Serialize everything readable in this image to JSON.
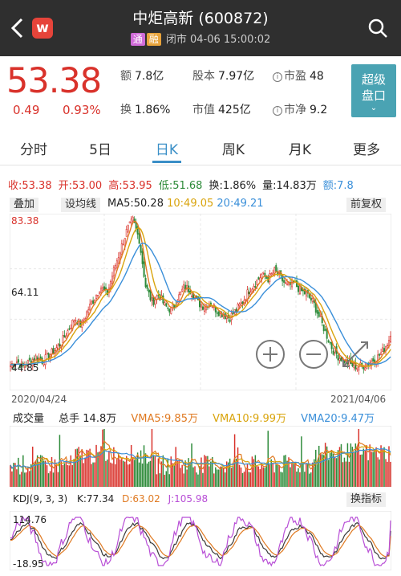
{
  "header": {
    "logo_letter": "w",
    "title": "中炬高新 (600872)",
    "tag_tong": "通",
    "tag_rong": "融",
    "status": "闭市 04-06 15:00:02"
  },
  "quote": {
    "price": "53.38",
    "change": "0.49",
    "change_pct": "0.93%",
    "stats": [
      {
        "label": "额",
        "value": "7.8亿"
      },
      {
        "label": "股本",
        "value": "7.97亿"
      },
      {
        "label": "市盈",
        "value": "48"
      },
      {
        "label": "换",
        "value": "1.86%"
      },
      {
        "label": "市值",
        "value": "425亿"
      },
      {
        "label": "市净",
        "value": "9.2"
      }
    ],
    "super_button": "超级盘口",
    "super_button_l1": "超级",
    "super_button_l2": "盘口"
  },
  "tabs": [
    "分时",
    "5日",
    "日K",
    "周K",
    "月K",
    "更多"
  ],
  "active_tab": "日K",
  "ohlc": {
    "close": "收:53.38",
    "open": "开:53.00",
    "high": "高:53.95",
    "low": "低:51.68",
    "turnover": "换:1.86%",
    "volume": "量:14.83万",
    "extra": "额:7.8"
  },
  "toolbar": {
    "overlay": "叠加",
    "ma_settings": "设均线",
    "adjust": "前复权"
  },
  "ma": {
    "ma5": "MA5:50.28",
    "ma10": "10:49.05",
    "ma20": "20:49.21"
  },
  "price_axis": {
    "top": "83.38",
    "mid": "64.11",
    "bottom": "44.85"
  },
  "dates": {
    "start": "2020/04/24",
    "end": "2021/04/06"
  },
  "volume_panel": {
    "title": "成交量",
    "total": "总手 14.8万",
    "vma5": "VMA5:9.85万",
    "vma10": "VMA10:9.99万",
    "vma20": "VMA20:9.47万"
  },
  "kdj": {
    "title": "KDJ(9, 3, 3)",
    "k": "K:77.34",
    "d": "D:63.02",
    "j": "J:105.98",
    "switch": "换指标",
    "axis_top": "114.76",
    "axis_bottom": "-18.95"
  },
  "colors": {
    "up": "#d9322b",
    "down": "#2e8b3a",
    "ma5": "#e07a22",
    "ma10": "#d9a40d",
    "ma20": "#3a8fd9",
    "j": "#b84ed6",
    "accent": "#3a8fc7"
  },
  "chart_data": {
    "type": "candlestick",
    "x_range": [
      "2020/04/24",
      "2021/04/06"
    ],
    "ylim": [
      44.85,
      83.38
    ],
    "close_approx": [
      46,
      47,
      45.5,
      47,
      48,
      47,
      48.5,
      50,
      52,
      55,
      58,
      56,
      60,
      63,
      66,
      64,
      70,
      75,
      80,
      83,
      78,
      66,
      62,
      64,
      61,
      60,
      63,
      66,
      65,
      62,
      61,
      62,
      60,
      59,
      58,
      60,
      62,
      65,
      67,
      69,
      68,
      70,
      68,
      66,
      67,
      65,
      64,
      62,
      58,
      54,
      50,
      48,
      47,
      46,
      45.5,
      46,
      47,
      48,
      50,
      53.38
    ],
    "kdj": {
      "k_last": 77.34,
      "d_last": 63.02,
      "j_last": 105.98,
      "ylim": [
        -18.95,
        114.76
      ]
    }
  }
}
